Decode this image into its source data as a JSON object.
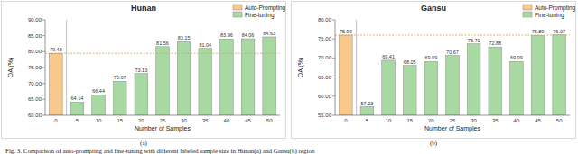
{
  "chart_data": [
    {
      "type": "bar",
      "title": "Hunan",
      "subtitle": "(a)",
      "x_label": "Number of Samples",
      "y_label": "OA (%)",
      "categories": [
        "0",
        "5",
        "10",
        "15",
        "20",
        "25",
        "30",
        "35",
        "40",
        "45",
        "50"
      ],
      "series": [
        {
          "name": "Auto-Prompting",
          "color": "#f8c98c",
          "values": [
            79.48,
            null,
            null,
            null,
            null,
            null,
            null,
            null,
            null,
            null,
            null
          ]
        },
        {
          "name": "Fine-tuning",
          "color": "#a8d9a2",
          "values": [
            null,
            64.14,
            66.44,
            70.67,
            73.13,
            81.56,
            83.15,
            81.04,
            83.96,
            84.06,
            84.63
          ]
        }
      ],
      "ylim": [
        60,
        90
      ],
      "yticks": [
        {
          "value": 60,
          "label": "60.00"
        },
        {
          "value": 65,
          "label": "65.00"
        },
        {
          "value": 70,
          "label": "70.00"
        },
        {
          "value": 75,
          "label": "75.00"
        },
        {
          "value": 80,
          "label": "80.00"
        },
        {
          "value": 85,
          "label": "85.00"
        },
        {
          "value": 90,
          "label": "90.00"
        }
      ],
      "grid": false,
      "legend": "top-right",
      "data_labels": true
    },
    {
      "type": "bar",
      "title": "Gansu",
      "subtitle": "(b)",
      "x_label": "Number of Samples",
      "y_label": "OA (%)",
      "categories": [
        "0",
        "5",
        "10",
        "15",
        "20",
        "25",
        "30",
        "35",
        "40",
        "45",
        "50"
      ],
      "series": [
        {
          "name": "Auto-Prompting",
          "color": "#f8c98c",
          "values": [
            75.99,
            null,
            null,
            null,
            null,
            null,
            null,
            null,
            null,
            null,
            null
          ]
        },
        {
          "name": "Fine-tuning",
          "color": "#a8d9a2",
          "values": [
            null,
            57.23,
            69.41,
            68.05,
            69.09,
            70.67,
            73.71,
            72.88,
            69.09,
            75.89,
            76.07
          ]
        }
      ],
      "ylim": [
        55,
        80
      ],
      "yticks": [
        {
          "value": 55,
          "label": "55.00"
        },
        {
          "value": 60,
          "label": "60.00"
        },
        {
          "value": 65,
          "label": "65.00"
        },
        {
          "value": 70,
          "label": "70.00"
        },
        {
          "value": 75,
          "label": "75.00"
        },
        {
          "value": 80,
          "label": "80.00"
        }
      ],
      "grid": false,
      "legend": "top-right",
      "data_labels": true
    }
  ],
  "caption": "Fig. 3.   Comparison of auto-prompting and fine-tuning with different labeled sample size in Hunan(a) and Gansu(b) region"
}
